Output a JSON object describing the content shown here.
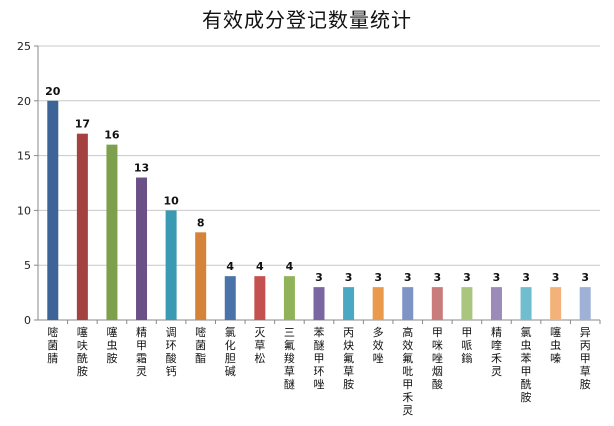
{
  "chart_data": {
    "type": "bar",
    "title": "有效成分登记数量统计",
    "xlabel": "",
    "ylabel": "",
    "ylim": [
      0,
      25
    ],
    "yticks": [
      0,
      5,
      10,
      15,
      20,
      25
    ],
    "grid": true,
    "legend": "none",
    "categories": [
      "嘧菌腈",
      "噻呋酰胺",
      "噻虫胺",
      "精甲霜灵",
      "调环酸钙",
      "嘧菌酯",
      "氯化胆碱",
      "灭草松",
      "三氟羧草醚",
      "苯醚甲环唑",
      "丙炔氟草胺",
      "多效唑",
      "高效氟吡甲禾灵",
      "甲咪唑烟酸",
      "甲哌鎓",
      "精喹禾灵",
      "氯虫苯甲酰胺",
      "噻虫嗪",
      "异丙甲草胺"
    ],
    "values": [
      20,
      17,
      16,
      13,
      10,
      8,
      4,
      4,
      4,
      3,
      3,
      3,
      3,
      3,
      3,
      3,
      3,
      3,
      3
    ],
    "colors": [
      "#3d6496",
      "#a4423f",
      "#7ea04c",
      "#6a5086",
      "#3b9ab3",
      "#d6833a",
      "#4a73aa",
      "#c4514f",
      "#90b258",
      "#7a66a0",
      "#4ba8c2",
      "#e99a4d",
      "#7d94c4",
      "#c97c7b",
      "#a9c57e",
      "#9b8bb9",
      "#70bdd0",
      "#f2b27a",
      "#9fb1d6"
    ]
  }
}
